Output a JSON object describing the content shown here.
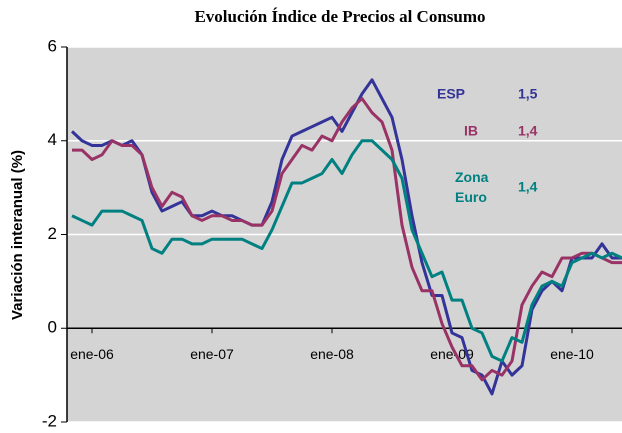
{
  "chart_data": {
    "type": "line",
    "title": "Evolución Índice de Precios al Consumo",
    "y_label": "Variación interanual (%)",
    "categories": [
      null,
      null,
      "ene-06",
      null,
      null,
      null,
      null,
      null,
      null,
      null,
      null,
      null,
      null,
      null,
      "ene-07",
      null,
      null,
      null,
      null,
      null,
      null,
      null,
      null,
      null,
      null,
      null,
      "ene-08",
      null,
      null,
      null,
      null,
      null,
      null,
      null,
      null,
      null,
      null,
      null,
      "ene-09",
      null,
      null,
      null,
      null,
      null,
      null,
      null,
      null,
      null,
      null,
      null,
      "ene-10",
      null,
      null,
      null,
      null,
      null
    ],
    "ylim": [
      -2,
      6
    ],
    "yticks": [
      -2,
      0,
      2,
      4,
      6
    ],
    "grid": true,
    "series": [
      {
        "name": "ESP",
        "color": "#333399",
        "value_text": "1,5",
        "values": [
          4.2,
          4.0,
          3.9,
          3.9,
          4.0,
          3.9,
          4.0,
          3.7,
          2.9,
          2.5,
          2.6,
          2.7,
          2.4,
          2.4,
          2.5,
          2.4,
          2.4,
          2.3,
          2.2,
          2.2,
          2.7,
          3.6,
          4.1,
          4.2,
          4.3,
          4.4,
          4.5,
          4.2,
          4.6,
          5.0,
          5.3,
          4.9,
          4.5,
          3.6,
          2.4,
          1.4,
          0.7,
          0.7,
          -0.1,
          -0.2,
          -0.9,
          -1.0,
          -1.4,
          -0.7,
          -1.0,
          -0.8,
          0.4,
          0.8,
          1.0,
          0.8,
          1.5,
          1.5,
          1.5,
          1.8,
          1.5,
          1.5
        ]
      },
      {
        "name": "IB",
        "color": "#993366",
        "value_text": "1,4",
        "values": [
          3.8,
          3.8,
          3.6,
          3.7,
          4.0,
          3.9,
          3.9,
          3.7,
          3.0,
          2.6,
          2.9,
          2.8,
          2.4,
          2.3,
          2.4,
          2.4,
          2.3,
          2.3,
          2.2,
          2.2,
          2.5,
          3.3,
          3.6,
          3.9,
          3.8,
          4.1,
          4.0,
          4.4,
          4.7,
          4.9,
          4.6,
          4.4,
          3.8,
          2.2,
          1.3,
          0.8,
          0.8,
          0.1,
          -0.4,
          -0.8,
          -0.8,
          -1.1,
          -0.9,
          -1.0,
          -0.7,
          0.5,
          0.9,
          1.2,
          1.1,
          1.5,
          1.5,
          1.6,
          1.6,
          1.5,
          1.4,
          1.4
        ]
      },
      {
        "name": "Zona Euro",
        "color": "#008080",
        "value_text": "1,4",
        "values": [
          2.4,
          2.3,
          2.2,
          2.5,
          2.5,
          2.5,
          2.4,
          2.3,
          1.7,
          1.6,
          1.9,
          1.9,
          1.8,
          1.8,
          1.9,
          1.9,
          1.9,
          1.9,
          1.8,
          1.7,
          2.1,
          2.6,
          3.1,
          3.1,
          3.2,
          3.3,
          3.6,
          3.3,
          3.7,
          4.0,
          4.0,
          3.8,
          3.6,
          3.2,
          2.1,
          1.6,
          1.1,
          1.2,
          0.6,
          0.6,
          0.0,
          -0.1,
          -0.6,
          -0.7,
          -0.2,
          -0.3,
          0.5,
          0.9,
          1.0,
          0.9,
          1.4,
          1.5,
          1.6,
          1.5,
          1.6,
          1.5
        ]
      }
    ]
  }
}
